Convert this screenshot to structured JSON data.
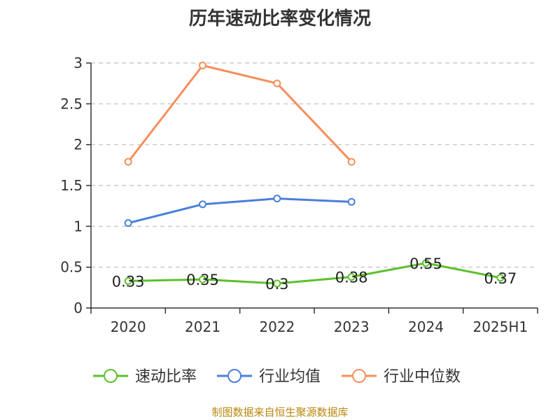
{
  "chart_data": {
    "type": "line",
    "title": "历年速动比率变化情况",
    "categories": [
      "2020",
      "2021",
      "2022",
      "2023",
      "2024",
      "2025H1"
    ],
    "ylim": [
      0,
      3
    ],
    "yticks": [
      "0",
      "0.5",
      "1",
      "1.5",
      "2",
      "2.5",
      "3"
    ],
    "grid": true,
    "legend_position": "bottom",
    "series": [
      {
        "name": "速动比率",
        "color": "#5cc02c",
        "values": [
          0.33,
          0.35,
          0.3,
          0.38,
          0.55,
          0.37
        ],
        "labels": [
          "0.33",
          "0.35",
          "0.3",
          "0.38",
          "0.55",
          "0.37"
        ]
      },
      {
        "name": "行业均值",
        "color": "#4a7fdb",
        "values": [
          1.04,
          1.27,
          1.34,
          1.3,
          null,
          null
        ]
      },
      {
        "name": "行业中位数",
        "color": "#f58f5b",
        "values": [
          1.79,
          2.97,
          2.75,
          1.79,
          null,
          null
        ]
      }
    ]
  },
  "source": "制图数据来自恒生聚源数据库"
}
